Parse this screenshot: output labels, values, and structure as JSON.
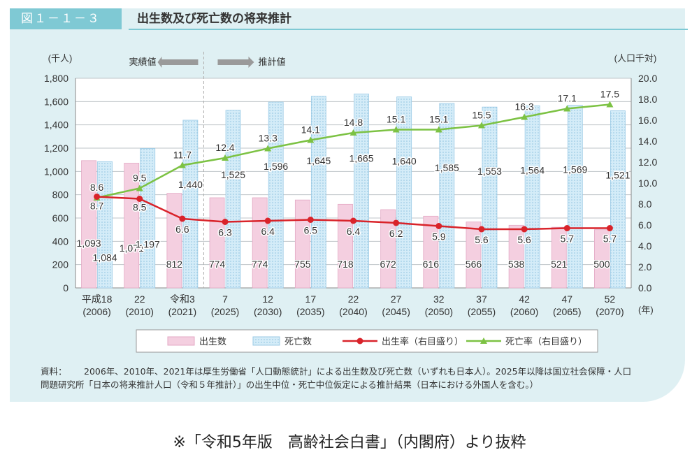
{
  "header": {
    "figure_number": "図１－１－３",
    "title": "出生数及び死亡数の将来推計"
  },
  "chart_data": {
    "type": "bar",
    "categories_era": [
      "平成18",
      "22",
      "令和3",
      "7",
      "12",
      "17",
      "22",
      "27",
      "32",
      "37",
      "42",
      "47",
      "52"
    ],
    "categories_year": [
      "(2006)",
      "(2010)",
      "(2021)",
      "(2025)",
      "(2030)",
      "(2035)",
      "(2040)",
      "(2045)",
      "(2050)",
      "(2055)",
      "(2060)",
      "(2065)",
      "(2070)"
    ],
    "x_unit": "(年)",
    "y_left_unit": "(千人)",
    "y_right_unit": "(人口千対)",
    "y_left_ticks": [
      "0",
      "200",
      "400",
      "600",
      "800",
      "1,000",
      "1,200",
      "1,400",
      "1,600",
      "1,800"
    ],
    "y_right_ticks": [
      "0.0",
      "2.0",
      "4.0",
      "6.0",
      "8.0",
      "10.0",
      "12.0",
      "14.0",
      "16.0",
      "18.0",
      "20.0"
    ],
    "ylim_left": [
      0,
      1800
    ],
    "ylim_right": [
      0,
      20
    ],
    "period_labels": {
      "actual": "実績値",
      "projected": "推計値"
    },
    "series": [
      {
        "name": "出生数",
        "axis": "left",
        "kind": "bar",
        "color": "#f4cfe0",
        "values": [
          1093,
          1071,
          812,
          774,
          774,
          755,
          718,
          672,
          616,
          566,
          538,
          521,
          500
        ],
        "labels": [
          "1,093",
          "1,071",
          "812",
          "774",
          "774",
          "755",
          "718",
          "672",
          "616",
          "566",
          "538",
          "521",
          "500"
        ]
      },
      {
        "name": "死亡数",
        "axis": "left",
        "kind": "bar",
        "color": "#d4ecf8",
        "values": [
          1084,
          1197,
          1440,
          1525,
          1596,
          1645,
          1665,
          1640,
          1585,
          1553,
          1564,
          1569,
          1521
        ],
        "labels": [
          "1,084",
          "1,197",
          "1,440",
          "1,525",
          "1,596",
          "1,645",
          "1,665",
          "1,640",
          "1,585",
          "1,553",
          "1,564",
          "1,569",
          "1,521"
        ]
      },
      {
        "name": "出生率（右目盛り）",
        "axis": "right",
        "kind": "line",
        "color": "#d9232a",
        "values": [
          8.7,
          8.5,
          6.6,
          6.3,
          6.4,
          6.5,
          6.4,
          6.2,
          5.9,
          5.6,
          5.6,
          5.7,
          5.7
        ],
        "labels": [
          "8.7",
          "8.5",
          "6.6",
          "6.3",
          "6.4",
          "6.5",
          "6.4",
          "6.2",
          "5.9",
          "5.6",
          "5.6",
          "5.7",
          "5.7"
        ]
      },
      {
        "name": "死亡率（右目盛り）",
        "axis": "right",
        "kind": "line",
        "color": "#7cc243",
        "values": [
          8.6,
          9.5,
          11.7,
          12.4,
          13.3,
          14.1,
          14.8,
          15.1,
          15.1,
          15.5,
          16.3,
          17.1,
          17.5
        ],
        "labels": [
          "8.6",
          "9.5",
          "11.7",
          "12.4",
          "13.3",
          "14.1",
          "14.8",
          "15.1",
          "15.1",
          "15.5",
          "16.3",
          "17.1",
          "17.5"
        ]
      }
    ],
    "grid": true,
    "legend_position": "bottom"
  },
  "source": {
    "label": "資料：",
    "line1": "2006年、2010年、2021年は厚生労働省「人口動態統計」による出生数及び死亡数（いずれも日本人）。2025年以降は国立社会保障・人口",
    "line2": "問題研究所「日本の将来推計人口（令和５年推計）」の出生中位・死亡中位仮定による推計結果（日本における外国人を含む。）"
  },
  "caption": "※「令和5年版　高齢社会白書」（内閣府）より抜粋"
}
